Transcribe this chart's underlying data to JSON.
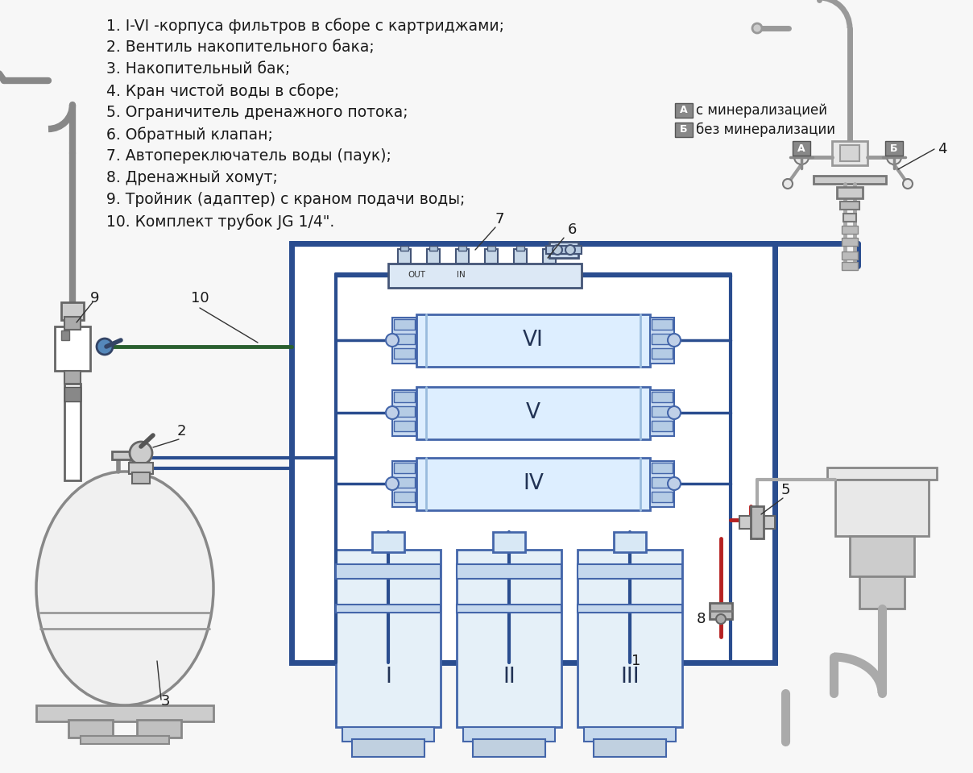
{
  "bg": "#f7f7f7",
  "blue": "#2a4d8f",
  "blue2": "#3a5fa0",
  "red": "#b52020",
  "green": "#2a6030",
  "gray": "#999999",
  "dark": "#333333",
  "lgray": "#cccccc",
  "llgray": "#e8e8e8",
  "tc": "#1a1a1a",
  "legend": [
    "1. I-VI -корпуса фильтров в сборе с картриджами;",
    "2. Вентиль накопительного бака;",
    "3. Накопительный бак;",
    "4. Кран чистой воды в сборе;",
    "5. Ограничитель дренажного потока;",
    "6. Обратный клапан;",
    "7. Автопереключатель воды (паук);",
    "8. Дренажный хомут;",
    "9. Тройник (адаптер) с краном подачи воды;",
    "10. Комплект трубок JG 1/4\"."
  ],
  "fz_legend": 13.5,
  "fz_label": 13,
  "fz_roman": 19
}
